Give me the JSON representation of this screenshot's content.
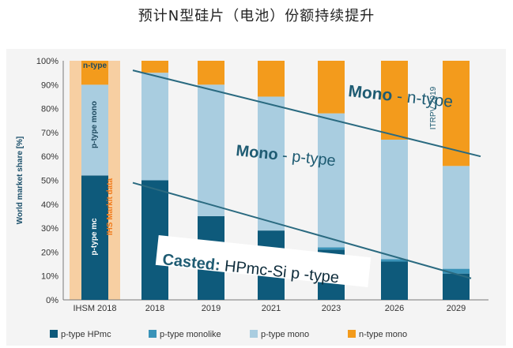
{
  "page": {
    "title": "预计N型硅片（电池）份额持续提升"
  },
  "chart_data": {
    "type": "bar",
    "stacked": true,
    "categories": [
      "IHSM 2018",
      "2018",
      "2019",
      "2021",
      "2023",
      "2026",
      "2029"
    ],
    "series": [
      {
        "name": "p-type HPmc",
        "color": "#0e5a7b",
        "values": [
          52,
          50,
          35,
          29,
          21,
          16,
          11
        ]
      },
      {
        "name": "p-type monolike",
        "color": "#3a93b8",
        "values": [
          0,
          0,
          0,
          0,
          1,
          1,
          2
        ]
      },
      {
        "name": "p-type mono",
        "color": "#a9cde0",
        "values": [
          38,
          45,
          55,
          56,
          56,
          50,
          43
        ]
      },
      {
        "name": "n-type mono",
        "color": "#f39b1c",
        "values": [
          10,
          5,
          10,
          15,
          22,
          33,
          44
        ]
      }
    ],
    "ylabel": "World market share [%]",
    "ylim": [
      0,
      100
    ],
    "yticks": [
      "0%",
      "10%",
      "20%",
      "30%",
      "40%",
      "50%",
      "60%",
      "70%",
      "80%",
      "90%",
      "100%"
    ],
    "annotations": {
      "mono_n": {
        "strong": "Mono",
        "rest": " - n-type"
      },
      "mono_p": {
        "strong": "Mono",
        "rest": " - p-type"
      },
      "casted": {
        "strong": "Casted:",
        "rest": " HPmc-Si  p -type"
      },
      "itrpv": "ITRPV 2019",
      "ihs": "IHS Markit data",
      "ihs_n": "n-type",
      "ihs_pmono": "p-type mono",
      "ihs_pmc": "p-type mc"
    },
    "grid": false,
    "legend_position": "bottom"
  }
}
